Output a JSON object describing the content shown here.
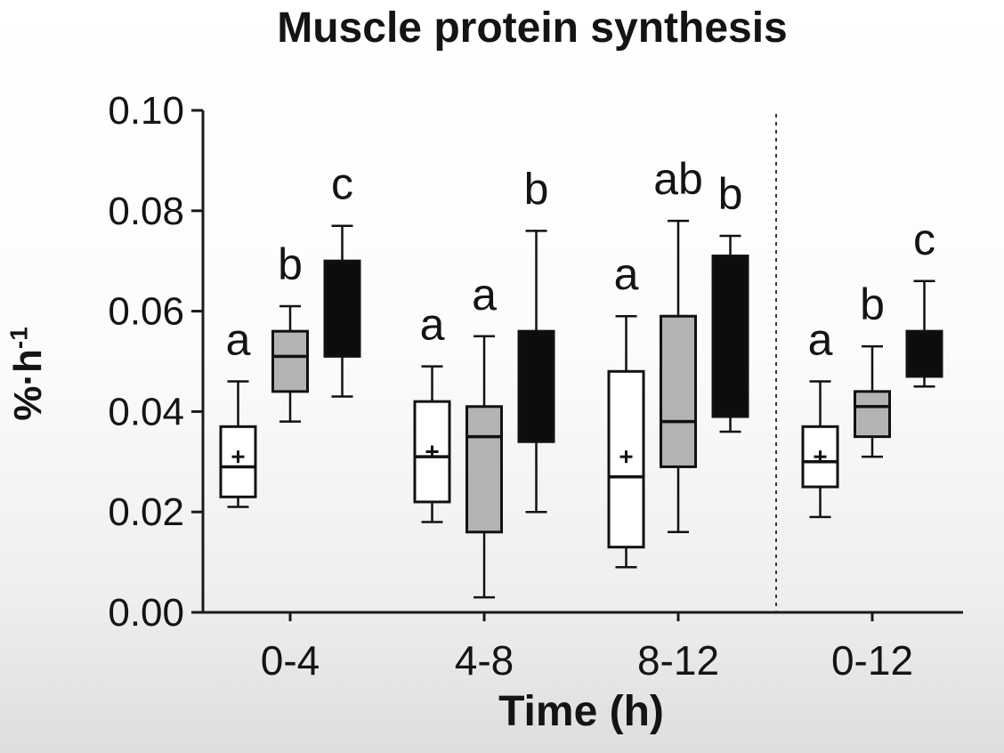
{
  "page": {
    "background_top": "#ffffff",
    "background_bottom": "#dedede"
  },
  "chart": {
    "title": "Muscle protein synthesis",
    "xlabel": "Time (h)",
    "ylabel_base": "%·h",
    "ylabel_sup": "-1"
  },
  "chart_data": {
    "type": "boxplot",
    "title": "Muscle protein synthesis",
    "xlabel": "Time (h)",
    "ylabel": "%·h⁻¹",
    "categories": [
      "0-4",
      "4-8",
      "8-12",
      "0-12"
    ],
    "ylim": [
      0.0,
      0.1
    ],
    "yticks": [
      0.0,
      0.02,
      0.04,
      0.06,
      0.08,
      0.1
    ],
    "ytick_labels": [
      "0.00",
      "0.02",
      "0.04",
      "0.06",
      "0.08",
      "0.10"
    ],
    "grid": false,
    "legend": "none",
    "separator_after_category": "8-12",
    "axis_color": "#1a1a1a",
    "series": [
      {
        "name": "white",
        "fill": "#ffffff",
        "boxes": [
          {
            "category": "0-4",
            "whisker_low": 0.021,
            "q1": 0.023,
            "median": 0.029,
            "q3": 0.037,
            "whisker_high": 0.046,
            "mean": 0.031,
            "letter": "a"
          },
          {
            "category": "4-8",
            "whisker_low": 0.018,
            "q1": 0.022,
            "median": 0.031,
            "q3": 0.042,
            "whisker_high": 0.049,
            "mean": 0.032,
            "letter": "a"
          },
          {
            "category": "8-12",
            "whisker_low": 0.009,
            "q1": 0.013,
            "median": 0.027,
            "q3": 0.048,
            "whisker_high": 0.059,
            "mean": 0.031,
            "letter": "a"
          },
          {
            "category": "0-12",
            "whisker_low": 0.019,
            "q1": 0.025,
            "median": 0.03,
            "q3": 0.037,
            "whisker_high": 0.046,
            "mean": 0.031,
            "letter": "a"
          }
        ]
      },
      {
        "name": "gray",
        "fill": "#b3b3b3",
        "boxes": [
          {
            "category": "0-4",
            "whisker_low": 0.038,
            "q1": 0.044,
            "median": 0.051,
            "q3": 0.056,
            "whisker_high": 0.061,
            "mean": null,
            "letter": "b"
          },
          {
            "category": "4-8",
            "whisker_low": 0.003,
            "q1": 0.016,
            "median": 0.035,
            "q3": 0.041,
            "whisker_high": 0.055,
            "mean": null,
            "letter": "a"
          },
          {
            "category": "8-12",
            "whisker_low": 0.016,
            "q1": 0.029,
            "median": 0.038,
            "q3": 0.059,
            "whisker_high": 0.078,
            "mean": null,
            "letter": "ab"
          },
          {
            "category": "0-12",
            "whisker_low": 0.031,
            "q1": 0.035,
            "median": 0.041,
            "q3": 0.044,
            "whisker_high": 0.053,
            "mean": null,
            "letter": "b"
          }
        ]
      },
      {
        "name": "black",
        "fill": "#0d0d0d",
        "boxes": [
          {
            "category": "0-4",
            "whisker_low": 0.043,
            "q1": 0.051,
            "median": null,
            "q3": 0.07,
            "whisker_high": 0.077,
            "mean": null,
            "letter": "c"
          },
          {
            "category": "4-8",
            "whisker_low": 0.02,
            "q1": 0.034,
            "median": null,
            "q3": 0.056,
            "whisker_high": 0.076,
            "mean": null,
            "letter": "b"
          },
          {
            "category": "8-12",
            "whisker_low": 0.036,
            "q1": 0.039,
            "median": null,
            "q3": 0.071,
            "whisker_high": 0.075,
            "mean": null,
            "letter": "b"
          },
          {
            "category": "0-12",
            "whisker_low": 0.045,
            "q1": 0.047,
            "median": null,
            "q3": 0.056,
            "whisker_high": 0.066,
            "mean": null,
            "letter": "c"
          }
        ]
      }
    ]
  }
}
